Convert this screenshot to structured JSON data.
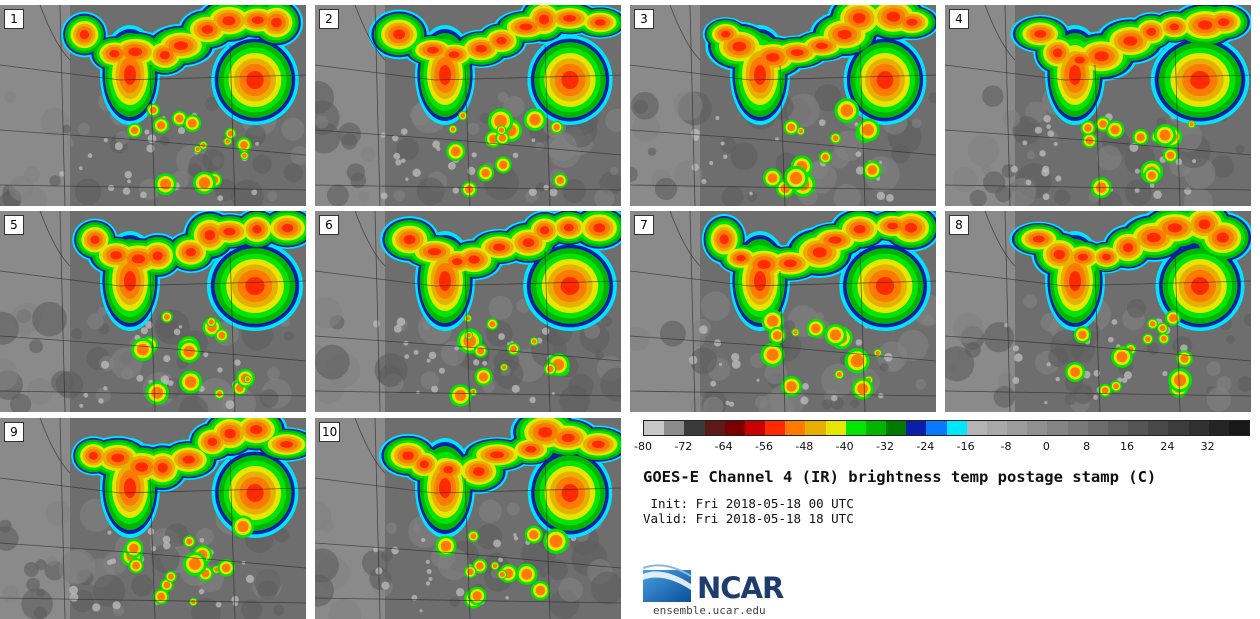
{
  "panels": [
    "1",
    "2",
    "3",
    "4",
    "5",
    "6",
    "7",
    "8",
    "9",
    "10"
  ],
  "colorbar": {
    "colors": [
      "#c8c8c8",
      "#8c8c8c",
      "#3a3a3a",
      "#5a1a1a",
      "#7a0000",
      "#c80000",
      "#ff2a00",
      "#ff7a00",
      "#e6b000",
      "#e6e600",
      "#00e600",
      "#00b400",
      "#007a00",
      "#0a1eaa",
      "#0a78ff",
      "#00e6ff",
      "#b4b4b4",
      "#a8a8a8",
      "#9c9c9c",
      "#909090",
      "#848484",
      "#787878",
      "#6c6c6c",
      "#606060",
      "#545454",
      "#484848",
      "#3c3c3c",
      "#303030",
      "#242424",
      "#181818"
    ],
    "tick_labels": [
      "-80",
      "-72",
      "-64",
      "-56",
      "-48",
      "-40",
      "-32",
      "-24",
      "-16",
      "-8",
      "0",
      "8",
      "16",
      "24",
      "32"
    ]
  },
  "title": "GOES-E Channel 4 (IR) brightness temp postage stamp (C)",
  "init": " Init: Fri 2018-05-18 00 UTC",
  "valid": "Valid: Fri 2018-05-18 18 UTC",
  "logo": {
    "text": "NCAR",
    "site": "ensemble.ucar.edu",
    "color": "#1f3c6e",
    "accent": "#1a6bb5"
  }
}
